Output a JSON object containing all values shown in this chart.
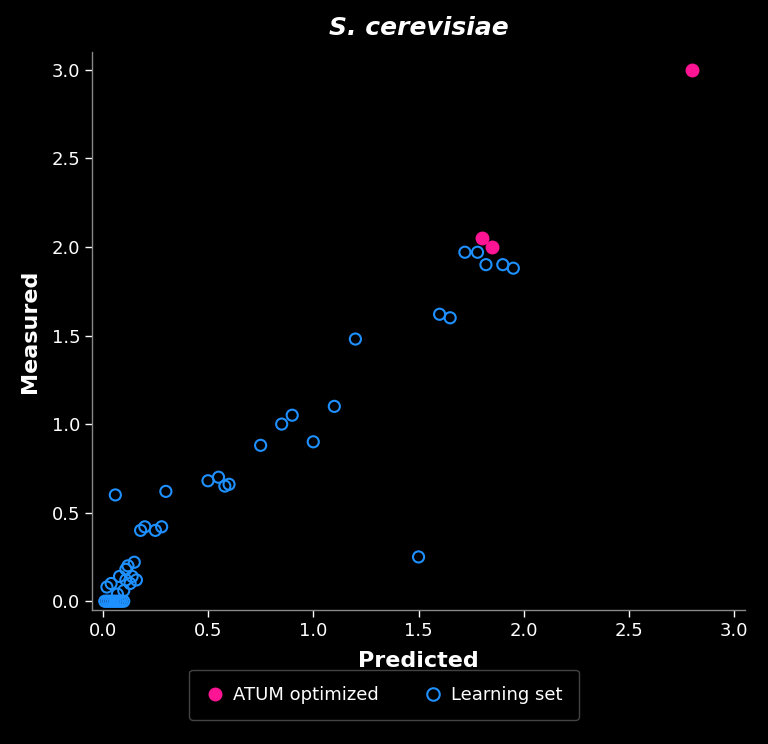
{
  "title": "S. cerevisiae",
  "xlabel": "Predicted",
  "ylabel": "Measured",
  "background_color": "#000000",
  "text_color": "#ffffff",
  "axis_color": "#888888",
  "xlim": [
    -0.05,
    3.05
  ],
  "ylim": [
    -0.05,
    3.1
  ],
  "xticks": [
    0,
    0.5,
    1,
    1.5,
    2,
    2.5,
    3
  ],
  "yticks": [
    0,
    0.5,
    1,
    1.5,
    2,
    2.5,
    3
  ],
  "learning_set": {
    "x": [
      0.01,
      0.02,
      0.02,
      0.03,
      0.04,
      0.04,
      0.05,
      0.06,
      0.06,
      0.07,
      0.07,
      0.08,
      0.08,
      0.09,
      0.1,
      0.1,
      0.11,
      0.11,
      0.12,
      0.13,
      0.14,
      0.15,
      0.16,
      0.18,
      0.2,
      0.25,
      0.28,
      0.3,
      0.5,
      0.55,
      0.58,
      0.6,
      0.75,
      0.85,
      0.9,
      1.0,
      1.1,
      1.2,
      1.5,
      1.6,
      1.65,
      1.72,
      1.78,
      1.82,
      1.9,
      1.95
    ],
    "y": [
      0.0,
      0.0,
      0.08,
      0.0,
      0.0,
      0.1,
      0.0,
      0.0,
      0.6,
      0.0,
      0.04,
      0.0,
      0.14,
      0.0,
      0.0,
      0.06,
      0.12,
      0.18,
      0.2,
      0.1,
      0.14,
      0.22,
      0.12,
      0.4,
      0.42,
      0.4,
      0.42,
      0.62,
      0.68,
      0.7,
      0.65,
      0.66,
      0.88,
      1.0,
      1.05,
      0.9,
      1.1,
      1.48,
      0.25,
      1.62,
      1.6,
      1.97,
      1.97,
      1.9,
      1.9,
      1.88
    ],
    "color": "#1e90ff",
    "markersize": 8,
    "linewidth": 1.5
  },
  "atum_optimized": {
    "x": [
      1.8,
      1.85,
      2.8
    ],
    "y": [
      2.05,
      2.0,
      3.0
    ],
    "color": "#ff1493",
    "markersize": 9
  },
  "legend": {
    "atum_label": "ATUM optimized",
    "learning_label": "Learning set",
    "box_facecolor": "#000000",
    "box_edgecolor": "#555555",
    "text_color": "#ffffff"
  }
}
